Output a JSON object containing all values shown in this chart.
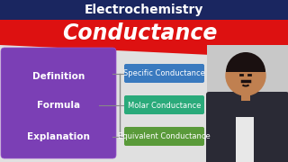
{
  "title_top": "Electrochemistry",
  "title_main": "Conductance",
  "top_bar_color": "#1a2660",
  "red_bar_color": "#dd1111",
  "left_box_color": "#7b3fb5",
  "left_box_labels": [
    "Definition",
    "Formula",
    "Explanation"
  ],
  "right_boxes": [
    {
      "label": "Specific Conductance",
      "color": "#3a7abf"
    },
    {
      "label": "Molar Conductance",
      "color": "#2aaa7a"
    },
    {
      "label": "Equivalent Conductance",
      "color": "#5a9a3a"
    }
  ],
  "bg_color": "#d0d0d0",
  "white": "#ffffff",
  "black": "#000000",
  "person_bg": "#c8c8c8",
  "suit_color": "#2a2a35",
  "skin_color": "#c08050",
  "shirt_color": "#e8e8e8"
}
